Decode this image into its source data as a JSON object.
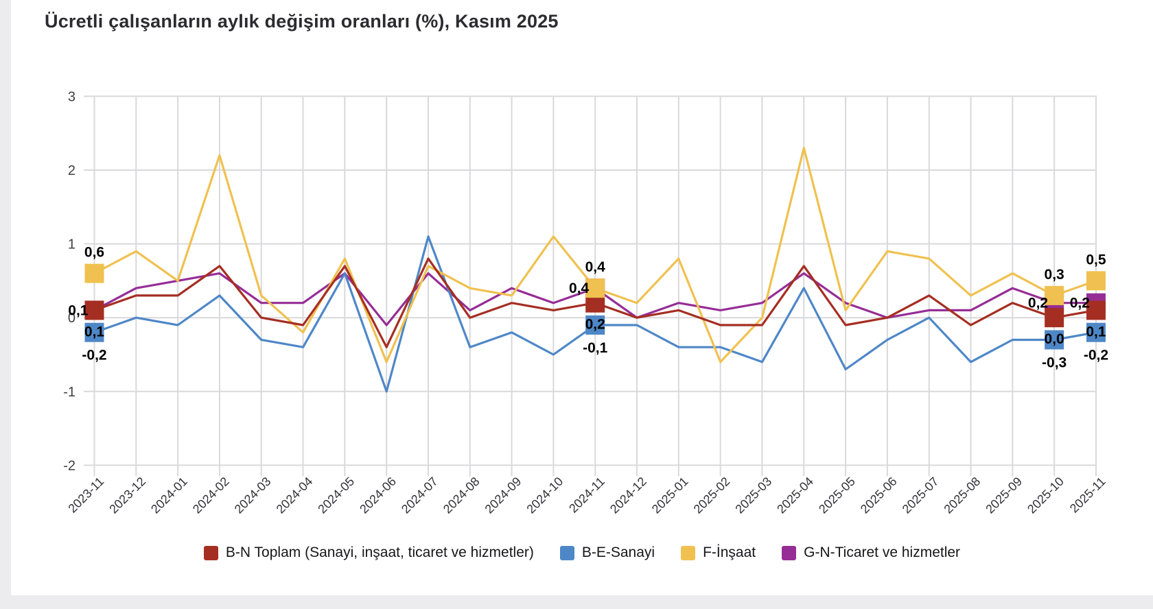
{
  "page": {
    "background": "#ececee",
    "card_background": "#ffffff"
  },
  "title": "Ücretli çalışanların aylık değişim oranları (%), Kasım 2025",
  "chart_data": {
    "type": "line",
    "title": "Ücretli çalışanların aylık değişim oranları (%), Kasım 2025",
    "xlabel": "",
    "ylabel": "",
    "ylim": [
      -2,
      3
    ],
    "yticks": [
      3,
      2,
      1,
      0,
      -1,
      -2
    ],
    "grid": true,
    "legend_position": "bottom",
    "categories": [
      "2023-11",
      "2023-12",
      "2024-01",
      "2024-02",
      "2024-03",
      "2024-04",
      "2024-05",
      "2024-06",
      "2024-07",
      "2024-08",
      "2024-09",
      "2024-10",
      "2024-11",
      "2024-12",
      "2025-01",
      "2025-02",
      "2025-03",
      "2025-04",
      "2025-05",
      "2025-06",
      "2025-07",
      "2025-08",
      "2025-09",
      "2025-10",
      "2025-11"
    ],
    "series": [
      {
        "id": "gn",
        "name": "G-N-Ticaret ve hizmetler",
        "color": "#962d96",
        "values": [
          0.1,
          0.4,
          0.5,
          0.6,
          0.2,
          0.2,
          0.6,
          -0.1,
          0.6,
          0.1,
          0.4,
          0.2,
          0.4,
          0.0,
          0.2,
          0.1,
          0.2,
          0.6,
          0.2,
          0.0,
          0.1,
          0.1,
          0.4,
          0.2,
          0.2
        ]
      },
      {
        "id": "be",
        "name": "B-E-Sanayi",
        "color": "#4e87c7",
        "values": [
          -0.2,
          0.0,
          -0.1,
          0.3,
          -0.3,
          -0.4,
          0.6,
          -1.0,
          1.1,
          -0.4,
          -0.2,
          -0.5,
          -0.1,
          -0.1,
          -0.4,
          -0.4,
          -0.6,
          0.4,
          -0.7,
          -0.3,
          0.0,
          -0.6,
          -0.3,
          -0.3,
          -0.2
        ]
      },
      {
        "id": "f",
        "name": "F-İnşaat",
        "color": "#f0c150",
        "values": [
          0.6,
          0.9,
          0.5,
          2.2,
          0.3,
          -0.2,
          0.8,
          -0.6,
          0.7,
          0.4,
          0.3,
          1.1,
          0.4,
          0.2,
          0.8,
          -0.6,
          0.0,
          2.3,
          0.1,
          0.9,
          0.8,
          0.3,
          0.6,
          0.3,
          0.5
        ]
      },
      {
        "id": "bn",
        "name": "B-N Toplam (Sanayi, inşaat, ticaret ve hizmetler)",
        "color": "#a52e22",
        "values": [
          0.1,
          0.3,
          0.3,
          0.7,
          0.0,
          -0.1,
          0.7,
          -0.4,
          0.8,
          0.0,
          0.2,
          0.1,
          0.2,
          0.0,
          0.1,
          -0.1,
          -0.1,
          0.7,
          -0.1,
          0.0,
          0.3,
          -0.1,
          0.2,
          0.0,
          0.1
        ]
      }
    ],
    "legend_order": [
      "bn",
      "be",
      "f",
      "gn"
    ],
    "annotations": [
      {
        "month": "2023-11",
        "labels": {
          "bn": "0,1",
          "be": "-0,2",
          "f": "0,6",
          "gn": "0,1"
        }
      },
      {
        "month": "2024-11",
        "labels": {
          "bn": "0,2",
          "be": "-0,1",
          "f": "0,4",
          "gn": "0,4"
        }
      },
      {
        "month": "2025-10",
        "labels": {
          "bn": "0,0",
          "be": "-0,3",
          "f": "0,3",
          "gn": "0,2"
        }
      },
      {
        "month": "2025-11",
        "labels": {
          "bn": "0,1",
          "be": "-0,2",
          "f": "0,5",
          "gn": "0,2"
        }
      }
    ]
  }
}
